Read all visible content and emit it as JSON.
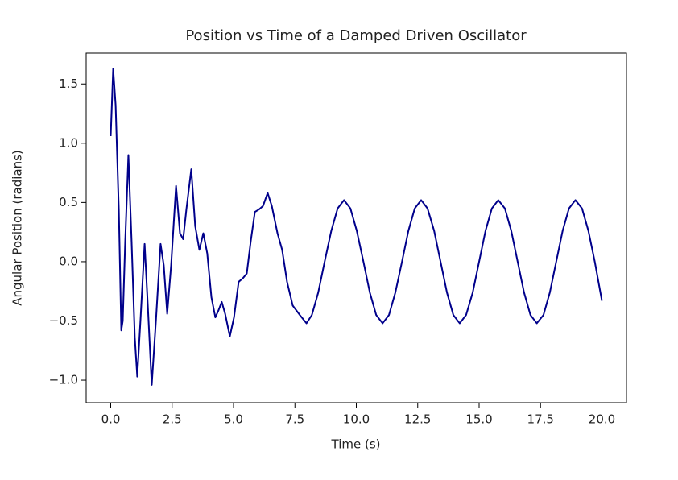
{
  "chart_data": {
    "type": "line",
    "title": "Position vs Time of a Damped Driven Oscillator",
    "x_label": "Time (s)",
    "y_label": "Angular Position (radians)",
    "xlim": [
      -1.0,
      21.0
    ],
    "ylim": [
      -1.19,
      1.76
    ],
    "xticks": [
      {
        "value": 0,
        "label": "0.0"
      },
      2.5,
      {
        "value": 5,
        "label": "5.0"
      },
      7.5,
      {
        "value": 10,
        "label": "10.0"
      },
      12.5,
      {
        "value": 15,
        "label": "15.0"
      },
      17.5,
      {
        "value": 20,
        "label": "20.0"
      }
    ],
    "yticks": [
      {
        "value": -1,
        "label": "−1.0"
      },
      {
        "value": -0.5,
        "label": "−0.5"
      },
      {
        "value": 0,
        "label": "0.0"
      },
      0.5,
      {
        "value": 1,
        "label": "1.0"
      },
      1.5
    ],
    "grid": false,
    "series": [
      {
        "color": "#00008b",
        "x": [
          0,
          0.1,
          0.2,
          0.33,
          0.43,
          0.49,
          0.59,
          0.72,
          0.85,
          0.98,
          1.08,
          1.21,
          1.38,
          1.51,
          1.67,
          1.84,
          2.03,
          2.16,
          2.3,
          2.46,
          2.66,
          2.82,
          2.95,
          3.08,
          3.28,
          3.44,
          3.61,
          3.77,
          3.93,
          4.1,
          4.26,
          4.39,
          4.52,
          4.66,
          4.85,
          5.02,
          5.21,
          5.38,
          5.54,
          5.7,
          5.87,
          6.03,
          6.2,
          6.39,
          6.56,
          6.79,
          6.98,
          7.18,
          7.41,
          7.7,
          7.97,
          8.19,
          8.45,
          8.71,
          8.98,
          9.24,
          9.5,
          9.76,
          10.02,
          10.29,
          10.55,
          10.81,
          11.07,
          11.33,
          11.59,
          11.86,
          12.12,
          12.38,
          12.64,
          12.9,
          13.17,
          13.43,
          13.69,
          13.95,
          14.21,
          14.47,
          14.74,
          15.0,
          15.26,
          15.52,
          15.78,
          16.05,
          16.31,
          16.57,
          16.83,
          17.09,
          17.35,
          17.62,
          17.88,
          18.14,
          18.4,
          18.66,
          18.92,
          19.19,
          19.45,
          19.71,
          20.0
        ],
        "values": [
          1.06,
          1.63,
          1.32,
          0.44,
          -0.58,
          -0.5,
          0.17,
          0.9,
          0.17,
          -0.64,
          -0.97,
          -0.5,
          0.15,
          -0.37,
          -1.04,
          -0.5,
          0.15,
          -0.03,
          -0.44,
          -0.03,
          0.64,
          0.24,
          0.19,
          0.44,
          0.78,
          0.3,
          0.1,
          0.24,
          0.07,
          -0.3,
          -0.47,
          -0.41,
          -0.34,
          -0.44,
          -0.63,
          -0.47,
          -0.17,
          -0.14,
          -0.1,
          0.17,
          0.42,
          0.44,
          0.47,
          0.58,
          0.47,
          0.24,
          0.1,
          -0.17,
          -0.37,
          -0.45,
          -0.52,
          -0.45,
          -0.26,
          0,
          0.26,
          0.45,
          0.52,
          0.45,
          0.26,
          0,
          -0.26,
          -0.45,
          -0.52,
          -0.45,
          -0.26,
          0,
          0.26,
          0.45,
          0.52,
          0.45,
          0.26,
          0,
          -0.26,
          -0.45,
          -0.52,
          -0.45,
          -0.26,
          0,
          0.26,
          0.45,
          0.52,
          0.45,
          0.26,
          0,
          -0.26,
          -0.45,
          -0.52,
          -0.45,
          -0.26,
          0,
          0.26,
          0.45,
          0.52,
          0.45,
          0.26,
          0,
          -0.33
        ]
      }
    ]
  }
}
